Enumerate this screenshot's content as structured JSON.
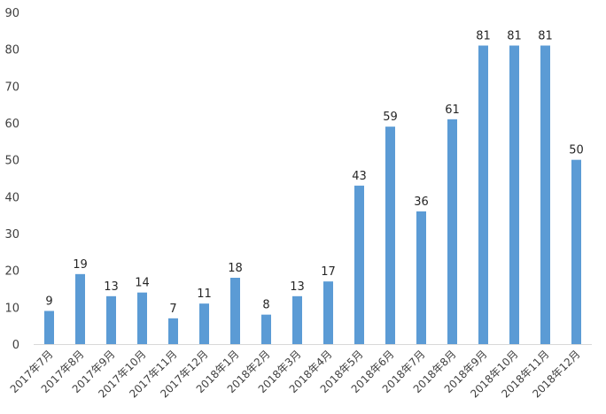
{
  "chart_data": {
    "type": "bar",
    "categories": [
      "2017年7月",
      "2017年8月",
      "2017年9月",
      "2017年10月",
      "2017年11月",
      "2017年12月",
      "2018年1月",
      "2018年2月",
      "2018年3月",
      "2018年4月",
      "2018年5月",
      "2018年6月",
      "2018年7月",
      "2018年8月",
      "2018年9月",
      "2018年10月",
      "2018年11月",
      "2018年12月"
    ],
    "values": [
      9,
      19,
      13,
      14,
      7,
      11,
      18,
      8,
      13,
      17,
      43,
      59,
      36,
      61,
      81,
      81,
      81,
      50
    ],
    "ylim": [
      0,
      90
    ],
    "yticks": [
      "0",
      "10",
      "20",
      "30",
      "40",
      "50",
      "60",
      "70",
      "80",
      "90"
    ],
    "grid": false,
    "bar_color": "#5B9BD5",
    "axis_color": "#D9D9D9",
    "data_labels": true
  }
}
